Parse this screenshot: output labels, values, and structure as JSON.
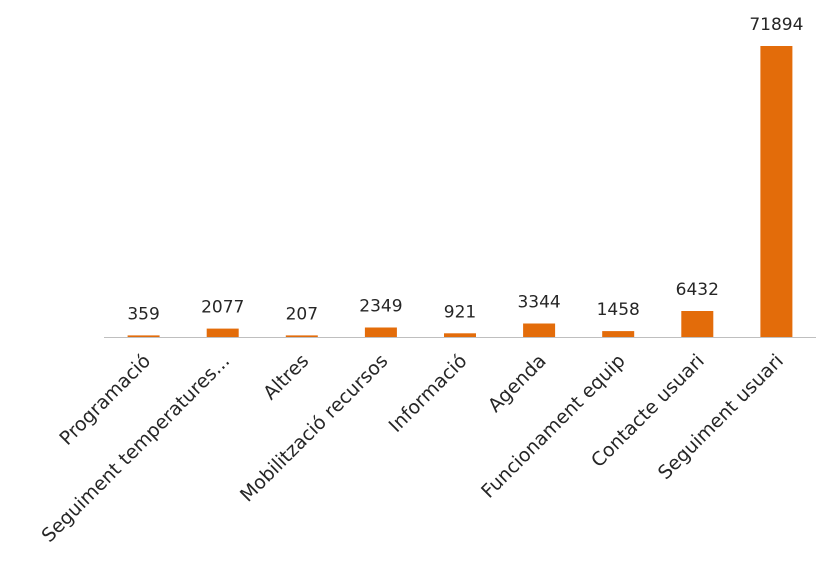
{
  "chart_data": {
    "type": "bar",
    "title": "",
    "xlabel": "",
    "ylabel": "",
    "categories": [
      "Programació",
      "Seguiment temperatures...",
      "Altres",
      "Mobilització recursos",
      "Informació",
      "Agenda",
      "Funcionament equip",
      "Contacte usuari",
      "Seguiment usuari"
    ],
    "values": [
      359,
      2077,
      207,
      2349,
      921,
      3344,
      1458,
      6432,
      71894
    ],
    "value_labels": [
      "359",
      "2077",
      "207",
      "2349",
      "921",
      "3344",
      "1458",
      "6432",
      "71894"
    ],
    "ylim": [
      0,
      71894
    ],
    "bar_color": "#E36C0A",
    "axis_color": "#BFBFBF",
    "text_color": "#262626",
    "grid": false,
    "legend": "none",
    "data_labels": true
  }
}
